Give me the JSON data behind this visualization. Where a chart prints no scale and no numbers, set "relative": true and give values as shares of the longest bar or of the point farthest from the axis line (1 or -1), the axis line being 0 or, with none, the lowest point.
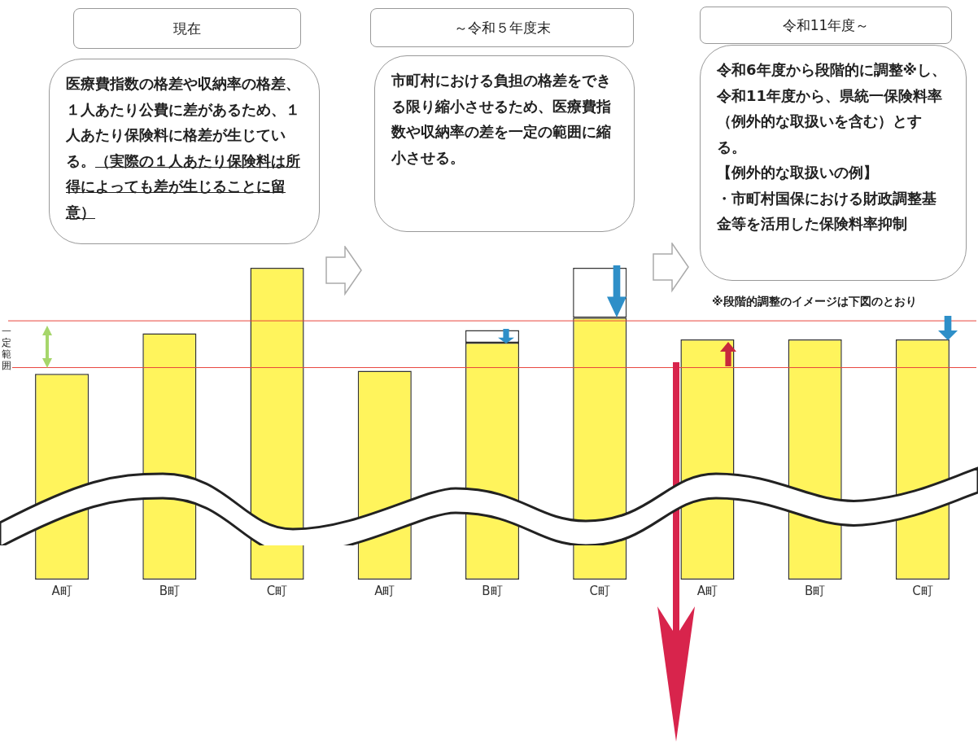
{
  "chart_data": {
    "type": "bar",
    "relative": true,
    "stacked": true,
    "categories": [
      "A町",
      "B町",
      "C町",
      "A町",
      "B町",
      "C町",
      "A町",
      "B町",
      "C町"
    ],
    "series": [
      {
        "color": "#fff45c",
        "values": [
          0.66,
          0.79,
          1,
          0.67,
          0.76,
          0.84,
          0.77,
          0.77,
          0.77
        ]
      },
      {
        "color": "#ffffff",
        "values": [
          null,
          null,
          null,
          0,
          0.04,
          0.16,
          null,
          null,
          null
        ]
      }
    ],
    "ref_lines": [
      {
        "axis": "y",
        "value": 0.83,
        "color": "#e8453c"
      },
      {
        "axis": "y",
        "value": 0.68,
        "color": "#e8453c"
      }
    ],
    "annotations": [
      "現在",
      "～令和５年度末",
      "令和11年度～",
      "医療費指数の格差や収納率の格差、１人あたり公費に差があるため、１人あたり保険料に格差が生じている。",
      "（実際の１人あたり保険料は所得によっても差が生じることに留意）",
      "市町村における負担の格差をできる限り縮小させるため、医療費指数や収納率の差を一定の範囲に縮小させる。",
      "令和6年度から段階的に調整※し、令和11年度から、県統一保険料率（例外的な取扱いを含む）とする。",
      "【例外的な取扱いの例】",
      "・市町村国保における財政調整基金等を活用した保険料率抑制",
      "※段階的調整のイメージは下図のとおり",
      "一定範囲"
    ]
  }
}
